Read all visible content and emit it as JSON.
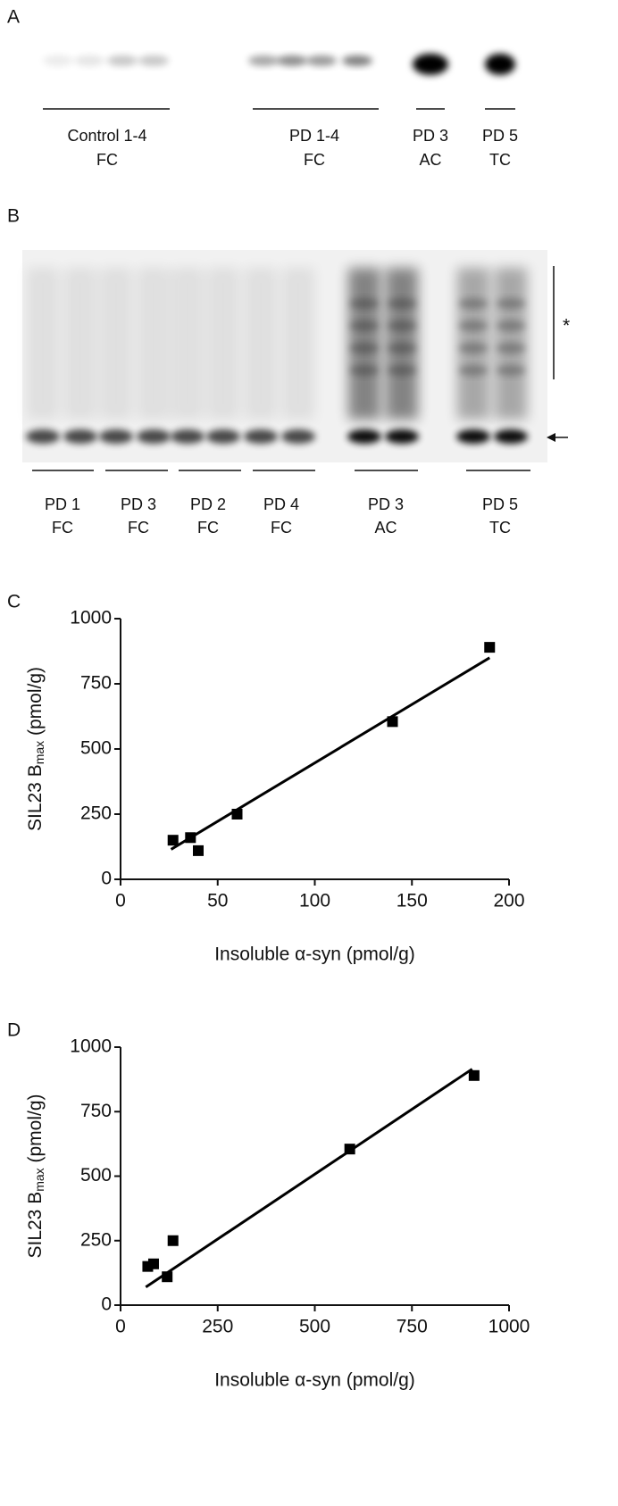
{
  "panels": {
    "a": "A",
    "b": "B"
  },
  "blot_a": {
    "lanes": [
      [
        "Control 1-4",
        "FC"
      ],
      [
        "PD 1-4",
        "FC"
      ],
      [
        "PD 3",
        "AC"
      ],
      [
        "PD 5",
        "TC"
      ]
    ]
  },
  "blot_b": {
    "lanes": [
      [
        "PD 1",
        "FC"
      ],
      [
        "PD 3",
        "FC"
      ],
      [
        "PD 2",
        "FC"
      ],
      [
        "PD 4",
        "FC"
      ],
      [
        "PD 3",
        "AC"
      ],
      [
        "PD 5",
        "TC"
      ]
    ],
    "marker": "*"
  },
  "chart_data": [
    {
      "type": "scatter",
      "panel": "C",
      "xlabel": "Insoluble α-syn (pmol/g)",
      "ylabel": {
        "text": "SIL23 B",
        "sub": "max",
        "unit": " (pmol/g)"
      },
      "x": [
        27,
        36,
        40,
        60,
        140,
        190
      ],
      "values": [
        150,
        160,
        110,
        250,
        605,
        890
      ],
      "color": "#000000",
      "fit": {
        "x": [
          26,
          190
        ],
        "y": [
          115,
          850
        ]
      },
      "xlim": [
        0,
        200
      ],
      "xticks": [
        0,
        50,
        100,
        150,
        200
      ],
      "ylim": [
        0,
        1000
      ],
      "yticks": [
        0,
        250,
        500,
        750,
        1000
      ]
    },
    {
      "type": "scatter",
      "panel": "D",
      "xlabel": "Insoluble α-syn (pmol/g)",
      "ylabel": {
        "text": "SIL23 B",
        "sub": "max",
        "unit": " (pmol/g)"
      },
      "x": [
        70,
        85,
        120,
        135,
        590,
        910
      ],
      "values": [
        150,
        160,
        110,
        250,
        605,
        890
      ],
      "color": "#000000",
      "fit": {
        "x": [
          65,
          905
        ],
        "y": [
          70,
          915
        ]
      },
      "xlim": [
        0,
        1000
      ],
      "xticks": [
        0,
        250,
        500,
        750,
        1000
      ],
      "ylim": [
        0,
        1000
      ],
      "yticks": [
        0,
        250,
        500,
        750,
        1000
      ]
    }
  ]
}
